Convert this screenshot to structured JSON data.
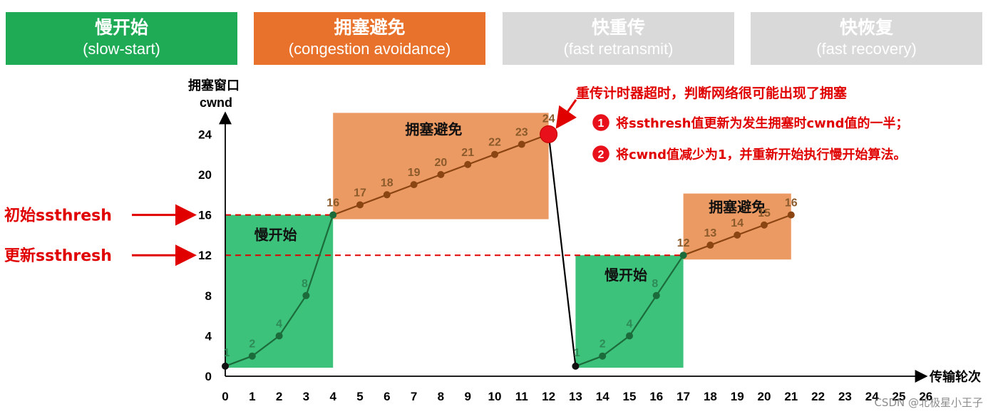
{
  "phases": [
    {
      "zh": "慢开始",
      "en": "(slow-start)",
      "color": "#1faa55",
      "active": true
    },
    {
      "zh": "拥塞避免",
      "en": "(congestion avoidance)",
      "color": "#e8722b",
      "active": true
    },
    {
      "zh": "快重传",
      "en": "(fast retransmit)",
      "color": "#d9d9d9",
      "active": false
    },
    {
      "zh": "快恢复",
      "en": "(fast recovery)",
      "color": "#d9d9d9",
      "active": false
    }
  ],
  "chart_data": {
    "type": "line",
    "ylabel_line1": "拥塞窗口",
    "ylabel_line2": "cwnd",
    "xlabel": "传输轮次",
    "xlim": [
      0,
      26
    ],
    "ylim": [
      0,
      24
    ],
    "xticks": [
      0,
      1,
      2,
      3,
      4,
      5,
      6,
      7,
      8,
      9,
      10,
      11,
      12,
      13,
      14,
      15,
      16,
      17,
      18,
      19,
      20,
      21,
      22,
      23,
      24,
      25,
      26
    ],
    "yticks": [
      0,
      4,
      8,
      12,
      16,
      20,
      24
    ],
    "series": [
      {
        "name": "",
        "points": [
          {
            "x": 0,
            "y": 1,
            "label": "1"
          },
          {
            "x": 1,
            "y": 2,
            "label": "2"
          },
          {
            "x": 2,
            "y": 4,
            "label": "4"
          },
          {
            "x": 3,
            "y": 8,
            "label": "8"
          },
          {
            "x": 4,
            "y": 16,
            "label": "16"
          },
          {
            "x": 5,
            "y": 17,
            "label": "17"
          },
          {
            "x": 6,
            "y": 18,
            "label": "18"
          },
          {
            "x": 7,
            "y": 19,
            "label": "19"
          },
          {
            "x": 8,
            "y": 20,
            "label": "20"
          },
          {
            "x": 9,
            "y": 21,
            "label": "21"
          },
          {
            "x": 10,
            "y": 22,
            "label": "22"
          },
          {
            "x": 11,
            "y": 23,
            "label": "23"
          },
          {
            "x": 12,
            "y": 24,
            "label": "24"
          },
          {
            "x": 13,
            "y": 1,
            "label": "1"
          },
          {
            "x": 14,
            "y": 2,
            "label": "2"
          },
          {
            "x": 15,
            "y": 4,
            "label": "4"
          },
          {
            "x": 16,
            "y": 8,
            "label": "8"
          },
          {
            "x": 17,
            "y": 12,
            "label": "12"
          },
          {
            "x": 18,
            "y": 13,
            "label": "13"
          },
          {
            "x": 19,
            "y": 14,
            "label": "14"
          },
          {
            "x": 20,
            "y": 15,
            "label": "15"
          },
          {
            "x": 21,
            "y": 16,
            "label": "16"
          }
        ]
      }
    ],
    "regions": [
      {
        "kind": "slow-start",
        "label": "慢开始",
        "x": [
          0,
          4
        ],
        "y": [
          0,
          16
        ],
        "color": "#3cc27a"
      },
      {
        "kind": "congestion-avoidance",
        "label": "拥塞避免",
        "x": [
          4,
          12
        ],
        "y": [
          16,
          24
        ],
        "color": "#ec9a63"
      },
      {
        "kind": "slow-start",
        "label": "慢开始",
        "x": [
          13,
          17
        ],
        "y": [
          0,
          12
        ],
        "color": "#3cc27a"
      },
      {
        "kind": "congestion-avoidance",
        "label": "拥塞避免",
        "x": [
          17,
          21
        ],
        "y": [
          12,
          16
        ],
        "color": "#ec9a63"
      }
    ],
    "thresholds": [
      {
        "y": 16,
        "label": "初始ssthresh"
      },
      {
        "y": 12,
        "label": "更新ssthresh"
      }
    ],
    "timeout_event": {
      "x": 12,
      "y": 24,
      "title": "重传计时器超时，判断网络很可能出现了拥塞",
      "steps": [
        {
          "num": "1",
          "text": "将ssthresh值更新为发生拥塞时cwnd值的一半；"
        },
        {
          "num": "2",
          "text": "将cwnd值减少为1，并重新开始执行慢开始算法。"
        }
      ]
    }
  },
  "watermark": "CSDN @北极星小王子"
}
